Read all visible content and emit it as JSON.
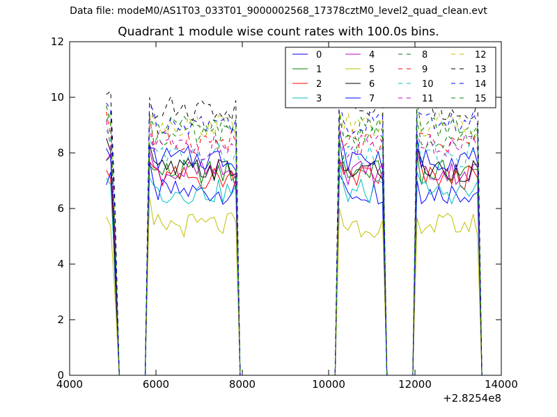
{
  "suptitle": "Data file: modeM0/AS1T03_033T01_9000002568_17378cztM0_level2_quad_clean.evt",
  "title": "Quadrant 1 module wise count rates with 100.0s bins.",
  "x_offset_label": "+2.8254e8",
  "chart_data": {
    "type": "line",
    "title": "Quadrant 1 module wise count rates with 100.0s bins.",
    "xlabel": "",
    "ylabel": "",
    "xlim": [
      4000,
      14000
    ],
    "ylim": [
      0,
      12
    ],
    "x_offset": 282540000,
    "xticks": [
      4000,
      6000,
      8000,
      10000,
      12000,
      14000
    ],
    "yticks": [
      0,
      2,
      4,
      6,
      8,
      10,
      12
    ],
    "grid": false,
    "legend_position": "top-right",
    "x": [
      4850,
      4950,
      5050,
      5150,
      5250,
      5350,
      5450,
      5550,
      5650,
      5750,
      5850,
      5950,
      6050,
      6150,
      6250,
      6350,
      6450,
      6550,
      6650,
      6750,
      6850,
      6950,
      7050,
      7150,
      7250,
      7350,
      7450,
      7550,
      7650,
      7750,
      7850,
      7950,
      8050,
      8150,
      8250,
      8350,
      8450,
      8550,
      8650,
      8750,
      8850,
      8950,
      9050,
      9150,
      9250,
      9350,
      9450,
      9550,
      9650,
      9750,
      9850,
      9950,
      10050,
      10150,
      10250,
      10350,
      10450,
      10550,
      10650,
      10750,
      10850,
      10950,
      11050,
      11150,
      11250,
      11350,
      11450,
      11550,
      11650,
      11750,
      11850,
      11950,
      12050,
      12150,
      12250,
      12350,
      12450,
      12550,
      12650,
      12750,
      12850,
      12950,
      13050,
      13150,
      13250,
      13350,
      13450,
      13550
    ],
    "active_segments": [
      {
        "start": 4850,
        "end": 5050,
        "base_factor": [
          1.0,
          1.0,
          0.6
        ]
      },
      {
        "start": 5850,
        "end": 7850,
        "base_factor": [
          1.0
        ]
      },
      {
        "start": 10250,
        "end": 11250,
        "base_factor": [
          1.0
        ]
      },
      {
        "start": 12050,
        "end": 13450,
        "base_factor": [
          1.0
        ]
      }
    ],
    "series": [
      {
        "name": "0",
        "color": "#0000ff",
        "dash": "solid",
        "level": 6.6
      },
      {
        "name": "1",
        "color": "#008000",
        "dash": "solid",
        "level": 7.3
      },
      {
        "name": "2",
        "color": "#ff0000",
        "dash": "solid",
        "level": 7.1
      },
      {
        "name": "3",
        "color": "#00bfbf",
        "dash": "solid",
        "level": 6.6
      },
      {
        "name": "4",
        "color": "#bf00bf",
        "dash": "solid",
        "level": 7.3
      },
      {
        "name": "5",
        "color": "#bfbf00",
        "dash": "solid",
        "level": 5.4
      },
      {
        "name": "6",
        "color": "#000000",
        "dash": "solid",
        "level": 7.4
      },
      {
        "name": "7",
        "color": "#0000ff",
        "dash": "solid",
        "level": 7.8
      },
      {
        "name": "8",
        "color": "#008000",
        "dash": "dashed",
        "level": 8.6
      },
      {
        "name": "9",
        "color": "#ff0000",
        "dash": "dashed",
        "level": 8.4
      },
      {
        "name": "10",
        "color": "#00bfbf",
        "dash": "dashed",
        "level": 7.9
      },
      {
        "name": "11",
        "color": "#bf00bf",
        "dash": "dashed",
        "level": 8.2
      },
      {
        "name": "12",
        "color": "#bfbf00",
        "dash": "dashed",
        "level": 9.0
      },
      {
        "name": "13",
        "color": "#000000",
        "dash": "dashed",
        "level": 9.6
      },
      {
        "name": "14",
        "color": "#0000ff",
        "dash": "dashed",
        "level": 9.1
      },
      {
        "name": "15",
        "color": "#008000",
        "dash": "dashed",
        "level": 8.9
      }
    ]
  }
}
